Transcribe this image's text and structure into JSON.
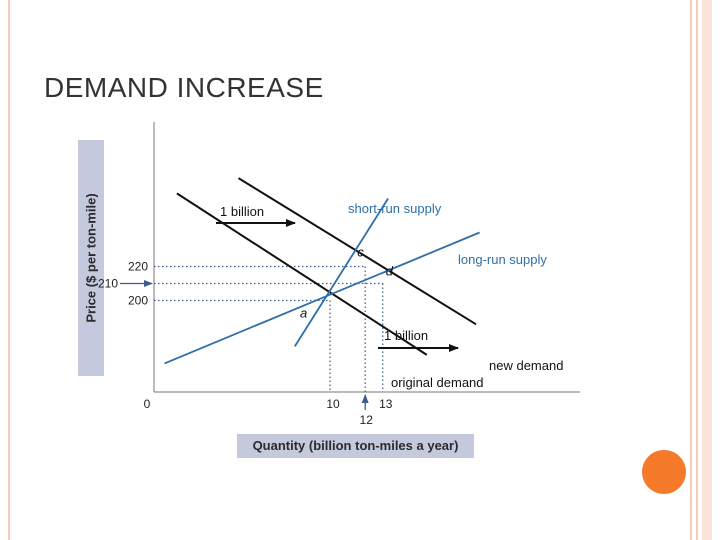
{
  "slide": {
    "title": "DEMAND INCREASE"
  },
  "colors": {
    "demand": "#111111",
    "supply": "#2e6fa8",
    "guide": "#3d5c8c",
    "ybox": "#c5c9de",
    "accent": "#f47a2a"
  },
  "chart_data": {
    "type": "line",
    "xlabel": "Quantity (billion ton-miles a year)",
    "ylabel": "Price ($ per ton-mile)",
    "x_ticks": [
      {
        "value": 0,
        "label": "0"
      },
      {
        "value": 10,
        "label": "10"
      },
      {
        "value": 12,
        "label": "12"
      },
      {
        "value": 13,
        "label": "13"
      }
    ],
    "y_ticks": [
      {
        "value": 200,
        "label": "200"
      },
      {
        "value": 210,
        "label": "210"
      },
      {
        "value": 220,
        "label": "220"
      }
    ],
    "series": [
      {
        "name": "original demand",
        "color": "#111111",
        "points": [
          [
            1.3,
            263
          ],
          [
            15.5,
            168
          ]
        ]
      },
      {
        "name": "new demand",
        "color": "#111111",
        "points": [
          [
            4.8,
            272
          ],
          [
            18.3,
            186
          ]
        ]
      },
      {
        "name": "short-run supply",
        "color": "#2e6fa8",
        "points": [
          [
            8.0,
            173
          ],
          [
            13.3,
            260
          ]
        ]
      },
      {
        "name": "long-run supply",
        "color": "#2e6fa8",
        "points": [
          [
            0.6,
            163
          ],
          [
            18.5,
            240
          ]
        ]
      }
    ],
    "points": [
      {
        "label": "a",
        "x": 10,
        "y": 200
      },
      {
        "label": "c",
        "x": 12,
        "y": 220
      },
      {
        "label": "d",
        "x": 13,
        "y": 210
      }
    ],
    "annotations": [
      {
        "text": "1 billion",
        "note": "rightward shift arrow at top"
      },
      {
        "text": "1 billion",
        "note": "rightward shift arrow at bottom"
      }
    ]
  }
}
